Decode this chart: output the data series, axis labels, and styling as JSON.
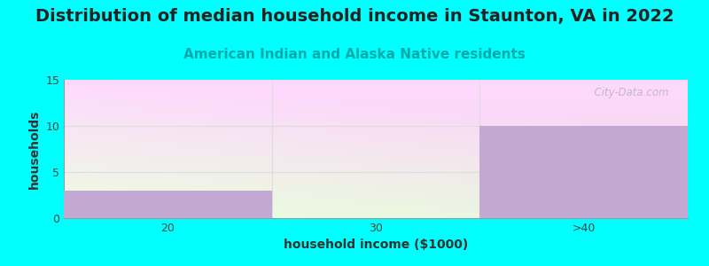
{
  "title": "Distribution of median household income in Staunton, VA in 2022",
  "subtitle": "American Indian and Alaska Native residents",
  "xlabel": "household income ($1000)",
  "ylabel": "households",
  "background_color": "#00FFFF",
  "bar_color": "#c4a8d4",
  "categories": [
    "20",
    "30",
    ">40"
  ],
  "values": [
    3,
    0,
    10
  ],
  "ylim": [
    0,
    15
  ],
  "yticks": [
    0,
    5,
    10,
    15
  ],
  "title_fontsize": 14,
  "subtitle_fontsize": 11,
  "subtitle_color": "#00AAAA",
  "axis_label_fontsize": 10,
  "watermark": "  City-Data.com",
  "watermark_color": "#aaaaaa",
  "grid_color": "#dddddd",
  "spine_color": "#999999"
}
